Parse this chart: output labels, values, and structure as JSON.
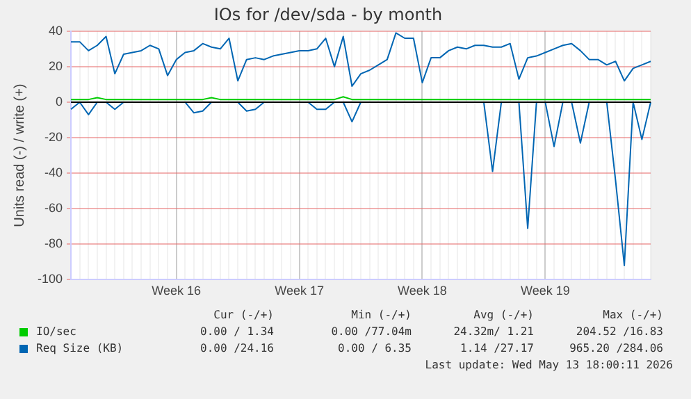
{
  "chart_data": {
    "type": "line",
    "title": "IOs for /dev/sda - by month",
    "ylabel": "Units read (-) / write (+)",
    "categories": [
      null,
      null,
      null,
      null,
      null,
      null,
      null,
      null,
      null,
      null,
      null,
      null,
      "Week 16",
      null,
      null,
      null,
      null,
      null,
      null,
      null,
      null,
      null,
      null,
      null,
      null,
      null,
      "Week 17",
      null,
      null,
      null,
      null,
      null,
      null,
      null,
      null,
      null,
      null,
      null,
      null,
      null,
      "Week 18",
      null,
      null,
      null,
      null,
      null,
      null,
      null,
      null,
      null,
      null,
      null,
      null,
      null,
      "Week 19",
      null,
      null,
      null,
      null,
      null,
      null,
      null,
      null,
      null,
      null,
      null,
      null
    ],
    "ylim": [
      -100,
      40
    ],
    "yticks": [
      -100,
      -80,
      -60,
      -40,
      -20,
      0,
      20,
      40
    ],
    "grid": true,
    "legend": "bottom",
    "marker": "none",
    "line_style": "solid",
    "ref_lines": [
      {
        "axis": "y",
        "value": 0,
        "color": "#000000"
      }
    ],
    "series": [
      {
        "name": "IO/sec",
        "color": "#00cc00",
        "values": [
          1.5,
          1.5,
          1.5,
          2.5,
          1.5,
          1.5,
          1.5,
          1.5,
          1.5,
          1.5,
          1.5,
          1.5,
          1.5,
          1.5,
          1.5,
          1.5,
          2.5,
          1.5,
          1.5,
          1.5,
          1.5,
          1.5,
          1.5,
          1.5,
          1.5,
          1.5,
          1.5,
          1.5,
          1.5,
          1.5,
          1.5,
          3,
          1.5,
          1.5,
          1.5,
          1.5,
          1.5,
          1.5,
          1.5,
          1.5,
          1.5,
          1.5,
          1.5,
          1.5,
          1.5,
          1.5,
          1.5,
          1.5,
          1.5,
          1.5,
          1.5,
          1.5,
          1.5,
          1.5,
          1.5,
          1.5,
          1.5,
          1.5,
          1.5,
          1.5,
          1.5,
          1.5,
          1.5,
          1.5,
          1.5,
          1.5,
          1.5
        ]
      },
      {
        "name": "Req Size (KB)",
        "color": "#0066b3",
        "values": [
          34,
          34,
          29,
          32,
          37,
          16,
          27,
          28,
          29,
          32,
          30,
          15,
          24,
          28,
          29,
          33,
          31,
          30,
          36,
          12,
          24,
          25,
          24,
          26,
          27,
          28,
          29,
          29,
          30,
          36,
          20,
          37,
          9,
          16,
          18,
          21,
          24,
          39,
          36,
          36,
          11,
          25,
          25,
          29,
          31,
          30,
          32,
          32,
          31,
          31,
          33,
          13,
          25,
          26,
          28,
          30,
          32,
          33,
          29,
          24,
          24,
          21,
          23,
          12,
          19,
          21,
          23
        ]
      },
      {
        "color": "#0066b3",
        "values": [
          -4,
          0,
          -7,
          0,
          0,
          -4,
          0,
          0,
          0,
          0,
          0,
          0,
          0,
          0,
          -6,
          -5,
          0,
          0,
          0,
          0,
          -5,
          -4,
          0,
          0,
          0,
          0,
          0,
          0,
          -4,
          -4,
          0,
          0,
          -11,
          0,
          0,
          0,
          0,
          0,
          0,
          0,
          0,
          0,
          0,
          0,
          0,
          0,
          0,
          0,
          -39,
          0,
          0,
          0,
          -71,
          0,
          0,
          -25,
          0,
          0,
          -23,
          0,
          0,
          0,
          -44,
          -92,
          0,
          -21,
          0
        ]
      }
    ],
    "annotations": [
      "Cur (-/+)",
      "Min (-/+)",
      "Avg (-/+)",
      "Max (-/+)",
      "0.00 / 1.34",
      "0.00 /77.04m",
      "24.32m/ 1.21",
      "204.52 /16.83",
      "0.00 /24.16",
      "0.00 / 6.35",
      "1.14 /27.17",
      "965.20 /284.06",
      "Last update: Wed May 13 18:00:11 2026"
    ]
  }
}
